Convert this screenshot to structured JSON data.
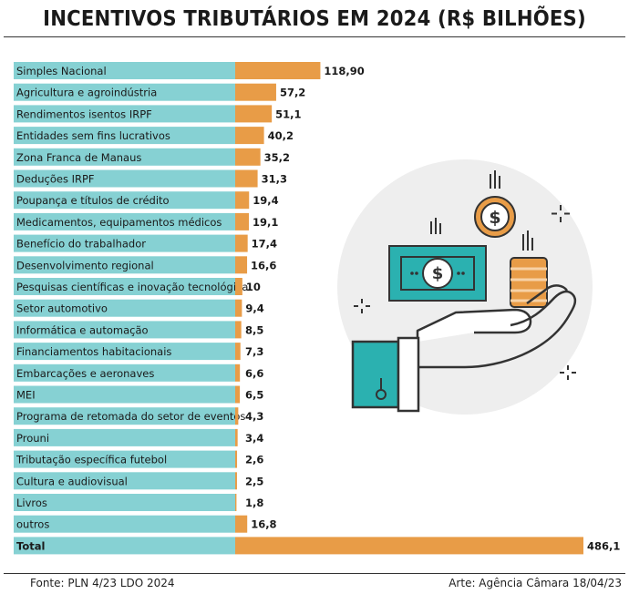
{
  "title": "INCENTIVOS TRIBUTÁRIOS EM 2024 (R$ BILHÕES)",
  "footer": {
    "source": "Fonte: PLN 4/23 LDO 2024",
    "credit": "Arte: Agência Câmara 18/04/23"
  },
  "colors": {
    "label_band": "#86d1d3",
    "bar": "#e89c47",
    "title_text": "#1a1a1a"
  },
  "chart_data": {
    "type": "bar",
    "orientation": "horizontal",
    "title": "INCENTIVOS TRIBUTÁRIOS EM 2024 (R$ BILHÕES)",
    "xlabel": "",
    "ylabel": "",
    "categories": [
      "Simples Nacional",
      "Agricultura e agroindústria",
      "Rendimentos isentos IRPF",
      "Entidades sem fins lucrativos",
      "Zona Franca de Manaus",
      "Deduções IRPF",
      "Poupança e títulos de crédito",
      "Medicamentos, equipamentos médicos",
      "Benefício do trabalhador",
      "Desenvolvimento regional",
      "Pesquisas científicas e inovação tecnológica",
      "Setor automotivo",
      "Informática e automação",
      "Financiamentos habitacionais",
      "Embarcações e aeronaves",
      "MEI",
      "Programa de retomada do setor de eventos",
      "Prouni",
      "Tributação específica futebol",
      "Cultura e audiovisual",
      "Livros",
      "outros",
      "Total"
    ],
    "values": [
      118.9,
      57.2,
      51.1,
      40.2,
      35.2,
      31.3,
      19.4,
      19.1,
      17.4,
      16.6,
      10,
      9.4,
      8.5,
      7.3,
      6.6,
      6.5,
      4.3,
      3.4,
      2.6,
      2.5,
      1.8,
      16.8,
      486.1
    ],
    "value_labels": [
      "118,90",
      "57,2",
      "51,1",
      "40,2",
      "35,2",
      "31,3",
      "19,4",
      "19,1",
      "17,4",
      "16,6",
      "10",
      "9,4",
      "8,5",
      "7,3",
      "6,6",
      "6,5",
      "4,3",
      "3,4",
      "2,6",
      "2,5",
      "1,8",
      "16,8",
      "486,1"
    ],
    "xlim": [
      0,
      486.1
    ],
    "grid": false,
    "legend": "none"
  }
}
